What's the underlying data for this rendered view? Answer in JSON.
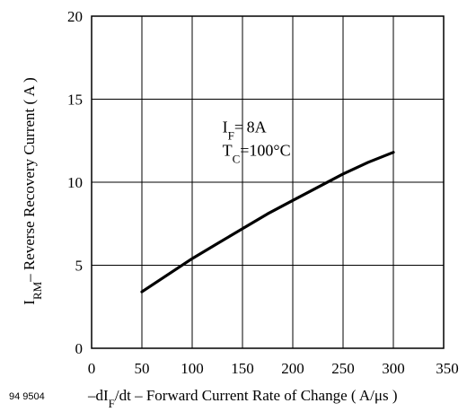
{
  "figure_id": "94 9504",
  "chart_data": {
    "type": "line",
    "title": "",
    "xlabel": "–dI_F/dt – Forward Current Rate of Change ( A/μs )",
    "xlabel_parts": {
      "pre": "–dI",
      "sub": "F",
      "post": "/dt – Forward Current Rate of Change ( A/μs )"
    },
    "ylabel": "I_RM– Reverse Recovery Current ( A )",
    "ylabel_parts": {
      "pre": "I",
      "sub": "RM",
      "post": "– Reverse Recovery Current ( A )"
    },
    "xlim": [
      0,
      350
    ],
    "ylim": [
      0,
      20
    ],
    "xticks": [
      0,
      50,
      100,
      150,
      200,
      250,
      300,
      350
    ],
    "yticks": [
      0,
      5,
      10,
      15,
      20
    ],
    "grid": true,
    "annotations": [
      {
        "pre": "I",
        "sub": "F",
        "post": "= 8A",
        "x": 130,
        "y": 13.0
      },
      {
        "pre": "T",
        "sub": "C",
        "post": "=100°C",
        "x": 130,
        "y": 11.6
      }
    ],
    "series": [
      {
        "color": "#000000",
        "x": [
          50,
          75,
          100,
          125,
          150,
          175,
          200,
          225,
          250,
          275,
          300
        ],
        "y": [
          3.4,
          4.4,
          5.4,
          6.3,
          7.2,
          8.1,
          8.9,
          9.7,
          10.5,
          11.2,
          11.8
        ]
      }
    ]
  }
}
